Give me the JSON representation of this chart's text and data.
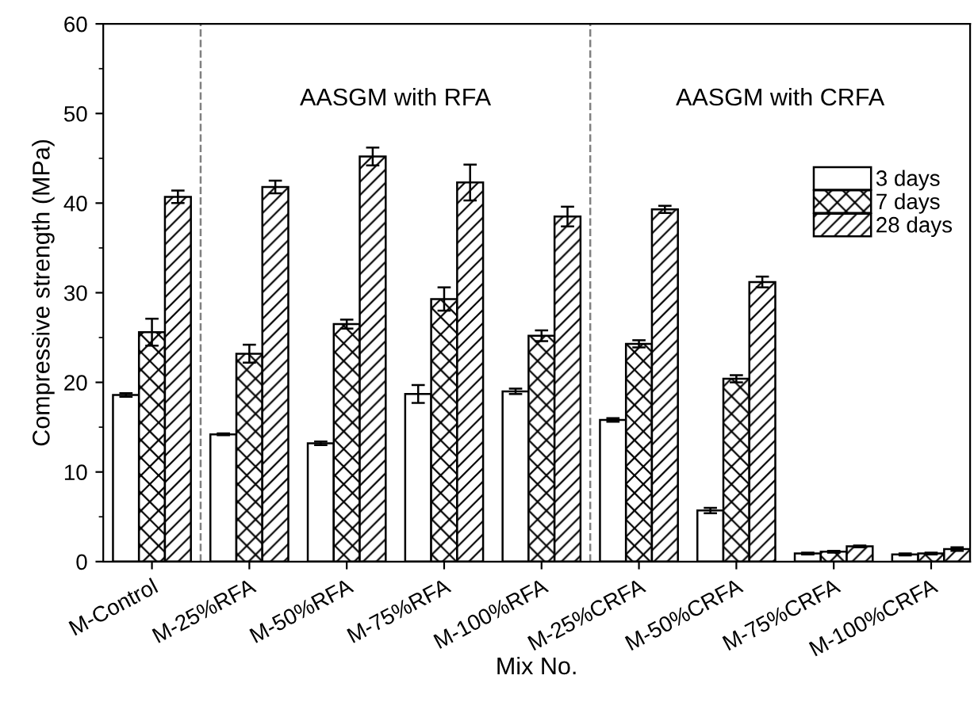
{
  "chart_data": {
    "type": "bar",
    "xlabel": "Mix No.",
    "ylabel": "Compressive strength (MPa)",
    "categories": [
      "M-Control",
      "M-25%RFA",
      "M-50%RFA",
      "M-75%RFA",
      "M-100%RFA",
      "M-25%CRFA",
      "M-50%CRFA",
      "M-75%CRFA",
      "M-100%CRFA"
    ],
    "series": [
      {
        "name": "3 days",
        "color": "#ffffff",
        "values": [
          18.6,
          14.2,
          13.2,
          18.7,
          19.0,
          15.8,
          5.7,
          0.9,
          0.8
        ],
        "errors": [
          0.2,
          0.1,
          0.2,
          1.0,
          0.3,
          0.2,
          0.3,
          0.1,
          0.1
        ]
      },
      {
        "name": "7 days",
        "color": "#000000",
        "values": [
          25.6,
          23.2,
          26.5,
          29.3,
          25.2,
          24.3,
          20.4,
          1.1,
          0.9
        ],
        "errors": [
          1.5,
          1.0,
          0.5,
          1.3,
          0.6,
          0.4,
          0.4,
          0.1,
          0.1
        ]
      },
      {
        "name": "28 days",
        "color": "#000000",
        "values": [
          40.7,
          41.8,
          45.2,
          42.3,
          38.5,
          39.3,
          31.2,
          1.7,
          1.4
        ],
        "errors": [
          0.7,
          0.7,
          1.0,
          2.0,
          1.1,
          0.4,
          0.6,
          0.1,
          0.2
        ]
      }
    ],
    "ylim": [
      0,
      60
    ],
    "yticks": [
      0,
      10,
      20,
      30,
      40,
      50,
      60
    ],
    "annotations": [
      "AASGM with RFA",
      "AASGM with CRFA"
    ],
    "legend": "top right",
    "grid": false
  }
}
